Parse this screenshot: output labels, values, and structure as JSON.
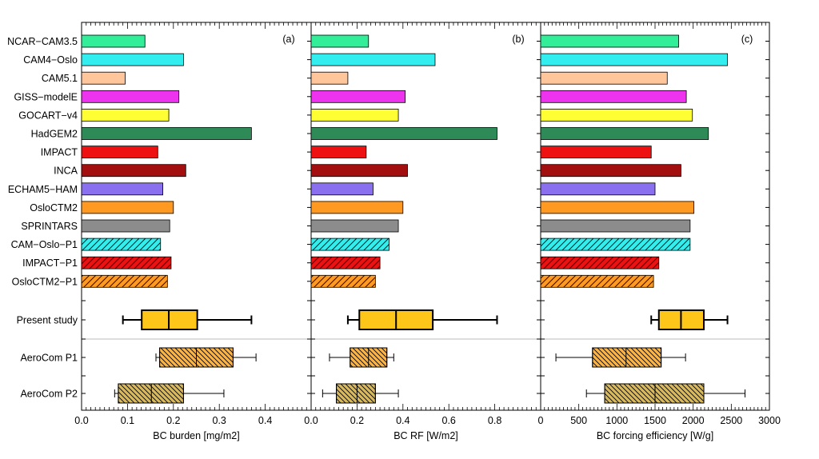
{
  "chart_data": [
    {
      "type": "bar",
      "panel_label": "(a)",
      "xlabel": "BC burden [mg/m2]",
      "xlim": [
        0,
        0.5
      ],
      "xticks": [
        "0.0",
        "0.1",
        "0.2",
        "0.3",
        "0.4"
      ],
      "values": [
        0.138,
        0.222,
        0.095,
        0.212,
        0.19,
        0.37,
        0.166,
        0.227,
        0.177,
        0.2,
        0.192,
        0.172,
        0.195,
        0.187
      ],
      "boxes": [
        {
          "name": "Present study",
          "whisker_low": 0.09,
          "q1": 0.131,
          "median": 0.19,
          "q3": 0.252,
          "whisker_high": 0.37
        },
        {
          "name": "AeroCom P1",
          "whisker_low": 0.162,
          "q1": 0.17,
          "median": 0.25,
          "q3": 0.33,
          "whisker_high": 0.38
        },
        {
          "name": "AeroCom P2",
          "whisker_low": 0.072,
          "q1": 0.08,
          "median": 0.152,
          "q3": 0.222,
          "whisker_high": 0.31
        }
      ]
    },
    {
      "type": "bar",
      "panel_label": "(b)",
      "xlabel": "BC RF [W/m2]",
      "xlim": [
        0,
        1.0
      ],
      "xticks": [
        "0.0",
        "0.2",
        "0.4",
        "0.6",
        "0.8"
      ],
      "values": [
        0.25,
        0.54,
        0.16,
        0.41,
        0.38,
        0.81,
        0.24,
        0.42,
        0.27,
        0.4,
        0.38,
        0.34,
        0.3,
        0.28
      ],
      "boxes": [
        {
          "name": "Present study",
          "whisker_low": 0.16,
          "q1": 0.21,
          "median": 0.37,
          "q3": 0.53,
          "whisker_high": 0.81
        },
        {
          "name": "AeroCom P1",
          "whisker_low": 0.08,
          "q1": 0.17,
          "median": 0.25,
          "q3": 0.33,
          "whisker_high": 0.36
        },
        {
          "name": "AeroCom P2",
          "whisker_low": 0.05,
          "q1": 0.11,
          "median": 0.2,
          "q3": 0.28,
          "whisker_high": 0.38
        }
      ]
    },
    {
      "type": "bar",
      "panel_label": "(c)",
      "xlabel": "BC forcing efficiency [W/g]",
      "xlim": [
        0,
        3000
      ],
      "xticks": [
        "0",
        "500",
        "1000",
        "1500",
        "2000",
        "2500",
        "3000"
      ],
      "values": [
        1810,
        2450,
        1660,
        1910,
        1990,
        2200,
        1450,
        1840,
        1500,
        2010,
        1960,
        1960,
        1550,
        1480
      ],
      "boxes": [
        {
          "name": "Present study",
          "whisker_low": 1450,
          "q1": 1550,
          "median": 1840,
          "q3": 2140,
          "whisker_high": 2450
        },
        {
          "name": "AeroCom P1",
          "whisker_low": 200,
          "q1": 680,
          "median": 1120,
          "q3": 1580,
          "whisker_high": 1900
        },
        {
          "name": "AeroCom P2",
          "whisker_low": 600,
          "q1": 840,
          "median": 1500,
          "q3": 2140,
          "whisker_high": 2680
        }
      ]
    }
  ],
  "models": [
    {
      "name": "NCAR−CAM3.5",
      "color": "#33ee99",
      "hatch": false
    },
    {
      "name": "CAM4−Oslo",
      "color": "#33eeee",
      "hatch": false
    },
    {
      "name": "CAM5.1",
      "color": "#ffc69c",
      "hatch": false
    },
    {
      "name": "GISS−modelE",
      "color": "#ee33ee",
      "hatch": false
    },
    {
      "name": "GOCART−v4",
      "color": "#ffff33",
      "hatch": false
    },
    {
      "name": "HadGEM2",
      "color": "#2e8b57",
      "hatch": false
    },
    {
      "name": "IMPACT",
      "color": "#ee1111",
      "hatch": false
    },
    {
      "name": "INCA",
      "color": "#a30f0f",
      "hatch": false
    },
    {
      "name": "ECHAM5−HAM",
      "color": "#8a70ee",
      "hatch": false
    },
    {
      "name": "OsloCTM2",
      "color": "#ff9922",
      "hatch": false
    },
    {
      "name": "SPRINTARS",
      "color": "#8c8c8c",
      "hatch": false
    },
    {
      "name": "CAM−Oslo−P1",
      "color": "#33eeee",
      "hatch": true
    },
    {
      "name": "IMPACT−P1",
      "color": "#ee1111",
      "hatch": true
    },
    {
      "name": "OsloCTM2−P1",
      "color": "#ff9922",
      "hatch": true
    }
  ],
  "box_rows": [
    {
      "name": "Present study",
      "color": "#ffc61a",
      "hatch": "none"
    },
    {
      "name": "AeroCom P1",
      "color": "#ffb340",
      "hatch": "diag"
    },
    {
      "name": "AeroCom P2",
      "color": "#d9b95a",
      "hatch": "diag"
    }
  ]
}
